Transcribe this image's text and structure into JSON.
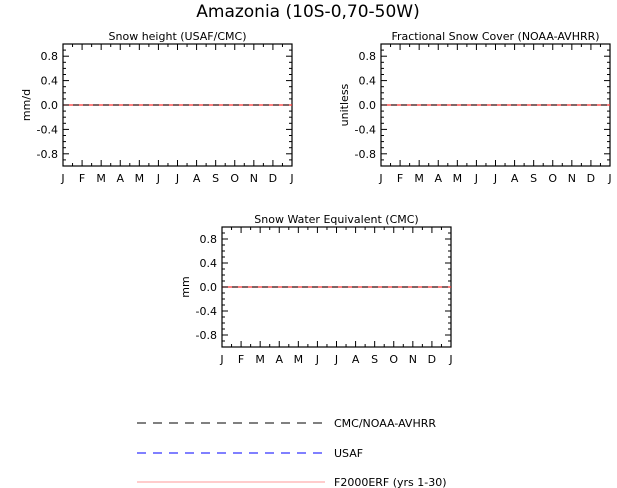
{
  "figure_title": "Amazonia (10S-0,70-50W)",
  "chart_data": [
    {
      "type": "line",
      "title": "Snow height (USAF/CMC)",
      "ylabel": "mm/d",
      "xlabel": "",
      "categories": [
        "J",
        "F",
        "M",
        "A",
        "M",
        "J",
        "J",
        "A",
        "S",
        "O",
        "N",
        "D",
        "J"
      ],
      "yticks": [
        "0.8",
        "0.4",
        "0.0",
        "-0.4",
        "-0.8"
      ],
      "ylim": [
        -1.0,
        1.0
      ],
      "grid": false,
      "series": [
        {
          "name": "CMC/NOAA-AVHRR",
          "values": [
            0,
            0,
            0,
            0,
            0,
            0,
            0,
            0,
            0,
            0,
            0,
            0,
            0
          ]
        },
        {
          "name": "USAF",
          "values": [
            0,
            0,
            0,
            0,
            0,
            0,
            0,
            0,
            0,
            0,
            0,
            0,
            0
          ]
        },
        {
          "name": "F2000ERF (yrs 1-30)",
          "values": [
            0,
            0,
            0,
            0,
            0,
            0,
            0,
            0,
            0,
            0,
            0,
            0,
            0
          ]
        }
      ]
    },
    {
      "type": "line",
      "title": "Fractional Snow Cover (NOAA-AVHRR)",
      "ylabel": "unitless",
      "xlabel": "",
      "categories": [
        "J",
        "F",
        "M",
        "A",
        "M",
        "J",
        "J",
        "A",
        "S",
        "O",
        "N",
        "D",
        "J"
      ],
      "yticks": [
        "0.8",
        "0.4",
        "0.0",
        "-0.4",
        "-0.8"
      ],
      "ylim": [
        -1.0,
        1.0
      ],
      "grid": false,
      "series": [
        {
          "name": "CMC/NOAA-AVHRR",
          "values": [
            0,
            0,
            0,
            0,
            0,
            0,
            0,
            0,
            0,
            0,
            0,
            0,
            0
          ]
        },
        {
          "name": "F2000ERF (yrs 1-30)",
          "values": [
            0,
            0,
            0,
            0,
            0,
            0,
            0,
            0,
            0,
            0,
            0,
            0,
            0
          ]
        }
      ]
    },
    {
      "type": "line",
      "title": "Snow Water Equivalent (CMC)",
      "ylabel": "mm",
      "xlabel": "",
      "categories": [
        "J",
        "F",
        "M",
        "A",
        "M",
        "J",
        "J",
        "A",
        "S",
        "O",
        "N",
        "D",
        "J"
      ],
      "yticks": [
        "0.8",
        "0.4",
        "0.0",
        "-0.4",
        "-0.8"
      ],
      "ylim": [
        -1.0,
        1.0
      ],
      "grid": false,
      "series": [
        {
          "name": "CMC/NOAA-AVHRR",
          "values": [
            0,
            0,
            0,
            0,
            0,
            0,
            0,
            0,
            0,
            0,
            0,
            0,
            0
          ]
        },
        {
          "name": "F2000ERF (yrs 1-30)",
          "values": [
            0,
            0,
            0,
            0,
            0,
            0,
            0,
            0,
            0,
            0,
            0,
            0,
            0
          ]
        }
      ]
    }
  ],
  "legend": {
    "placement": "bottom",
    "entries": [
      {
        "label": "CMC/NOAA-AVHRR",
        "color": "#000000",
        "style": "dashed"
      },
      {
        "label": "USAF",
        "color": "#0000ff",
        "style": "dashed"
      },
      {
        "label": "F2000ERF (yrs 1-30)",
        "color": "#ff9999",
        "style": "solid"
      }
    ]
  },
  "colors": {
    "obs": "#000000",
    "usaf": "#0000ff",
    "model": "#ff3333",
    "model_legend": "#ff9999"
  }
}
